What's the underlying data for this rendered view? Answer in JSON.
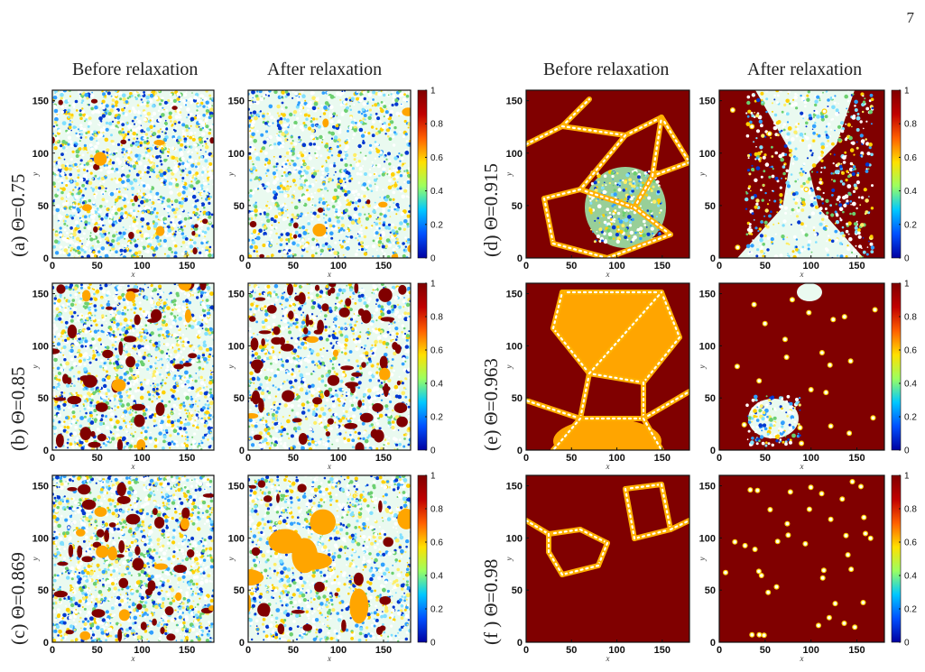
{
  "page_number": "7",
  "column_headers": [
    "Before relaxation",
    "After relaxation",
    "Before relaxation",
    "After relaxation"
  ],
  "row_labels": [
    {
      "id": "a",
      "text": "(a) Θ=0.75"
    },
    {
      "id": "b",
      "text": "(b) Θ=0.85"
    },
    {
      "id": "c",
      "text": "(c) Θ=0.869"
    },
    {
      "id": "d",
      "text": "(d) Θ=0.915"
    },
    {
      "id": "e",
      "text": "(e) Θ=0.963"
    },
    {
      "id": "f",
      "text": "(f ) Θ=0.98"
    }
  ],
  "axes": {
    "xlabel": "x",
    "ylabel": "y",
    "x_ticks": [
      "0",
      "50",
      "100",
      "150"
    ],
    "y_ticks": [
      "0",
      "50",
      "100",
      "150"
    ],
    "xlim": [
      0,
      180
    ],
    "ylim": [
      0,
      160
    ]
  },
  "colorbar": {
    "ticks": [
      "0",
      "0.2",
      "0.4",
      "0.6",
      "0.8",
      "1"
    ],
    "colors": [
      "#0000a0",
      "#0050ff",
      "#00c8ff",
      "#9cff60",
      "#ffe000",
      "#ff6000",
      "#c00000",
      "#800000"
    ]
  },
  "chart_data": [
    {
      "type": "heatmap",
      "panel": "a",
      "state": "Before relaxation",
      "theta": 0.75,
      "xlim": [
        0,
        180
      ],
      "ylim": [
        0,
        160
      ],
      "value_range": [
        0,
        1
      ],
      "colorbar": false
    },
    {
      "type": "heatmap",
      "panel": "a",
      "state": "After relaxation",
      "theta": 0.75,
      "xlim": [
        0,
        180
      ],
      "ylim": [
        0,
        160
      ],
      "value_range": [
        0,
        1
      ],
      "colorbar": true
    },
    {
      "type": "heatmap",
      "panel": "b",
      "state": "Before relaxation",
      "theta": 0.85,
      "xlim": [
        0,
        180
      ],
      "ylim": [
        0,
        160
      ],
      "value_range": [
        0,
        1
      ],
      "colorbar": false
    },
    {
      "type": "heatmap",
      "panel": "b",
      "state": "After relaxation",
      "theta": 0.85,
      "xlim": [
        0,
        180
      ],
      "ylim": [
        0,
        160
      ],
      "value_range": [
        0,
        1
      ],
      "colorbar": true
    },
    {
      "type": "heatmap",
      "panel": "c",
      "state": "Before relaxation",
      "theta": 0.869,
      "xlim": [
        0,
        180
      ],
      "ylim": [
        0,
        160
      ],
      "value_range": [
        0,
        1
      ],
      "colorbar": false
    },
    {
      "type": "heatmap",
      "panel": "c",
      "state": "After relaxation",
      "theta": 0.869,
      "xlim": [
        0,
        180
      ],
      "ylim": [
        0,
        160
      ],
      "value_range": [
        0,
        1
      ],
      "colorbar": true
    },
    {
      "type": "heatmap",
      "panel": "d",
      "state": "Before relaxation",
      "theta": 0.915,
      "xlim": [
        0,
        180
      ],
      "ylim": [
        0,
        160
      ],
      "value_range": [
        0,
        1
      ],
      "colorbar": false
    },
    {
      "type": "heatmap",
      "panel": "d",
      "state": "After relaxation",
      "theta": 0.915,
      "xlim": [
        0,
        180
      ],
      "ylim": [
        0,
        160
      ],
      "value_range": [
        0,
        1
      ],
      "colorbar": true
    },
    {
      "type": "heatmap",
      "panel": "e",
      "state": "Before relaxation",
      "theta": 0.963,
      "xlim": [
        0,
        180
      ],
      "ylim": [
        0,
        160
      ],
      "value_range": [
        0,
        1
      ],
      "colorbar": false
    },
    {
      "type": "heatmap",
      "panel": "e",
      "state": "After relaxation",
      "theta": 0.963,
      "xlim": [
        0,
        180
      ],
      "ylim": [
        0,
        160
      ],
      "value_range": [
        0,
        1
      ],
      "colorbar": true
    },
    {
      "type": "heatmap",
      "panel": "f",
      "state": "Before relaxation",
      "theta": 0.98,
      "xlim": [
        0,
        180
      ],
      "ylim": [
        0,
        160
      ],
      "value_range": [
        0,
        1
      ],
      "colorbar": false
    },
    {
      "type": "heatmap",
      "panel": "f",
      "state": "After relaxation",
      "theta": 0.98,
      "xlim": [
        0,
        180
      ],
      "ylim": [
        0,
        160
      ],
      "value_range": [
        0,
        1
      ],
      "colorbar": true
    }
  ]
}
